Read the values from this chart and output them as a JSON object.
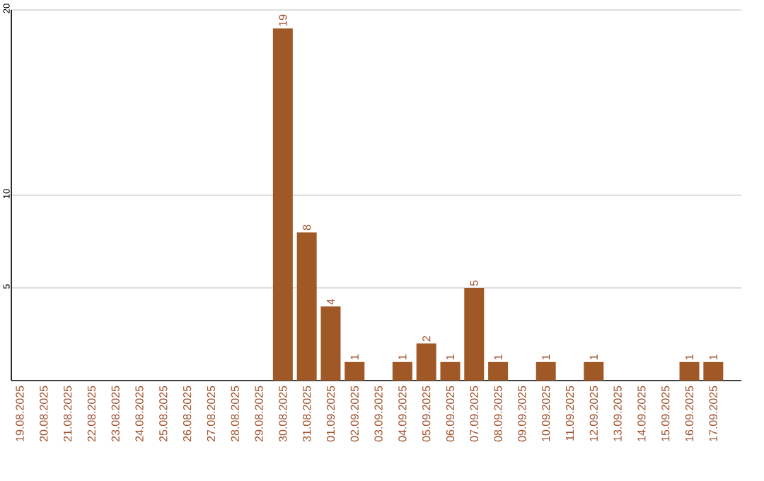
{
  "chart_data": {
    "type": "bar",
    "categories": [
      "19.08.2025",
      "20.08.2025",
      "21.08.2025",
      "22.08.2025",
      "23.08.2025",
      "24.08.2025",
      "25.08.2025",
      "26.08.2025",
      "27.08.2025",
      "28.08.2025",
      "29.08.2025",
      "30.08.2025",
      "31.08.2025",
      "01.09.2025",
      "02.09.2025",
      "03.09.2025",
      "04.09.2025",
      "05.09.2025",
      "06.09.2025",
      "07.09.2025",
      "08.09.2025",
      "09.09.2025",
      "10.09.2025",
      "11.09.2025",
      "12.09.2025",
      "13.09.2025",
      "14.09.2025",
      "15.09.2025",
      "16.09.2025",
      "17.09.2025"
    ],
    "values": [
      0,
      0,
      0,
      0,
      0,
      0,
      0,
      0,
      0,
      0,
      0,
      19,
      8,
      4,
      1,
      0,
      1,
      2,
      1,
      5,
      1,
      0,
      1,
      0,
      1,
      0,
      0,
      0,
      1,
      1
    ],
    "value_labels": [
      null,
      null,
      null,
      null,
      null,
      null,
      null,
      null,
      null,
      null,
      null,
      "19",
      "8",
      "4",
      "1",
      null,
      "1",
      "2",
      "1",
      "5",
      "1",
      null,
      "1",
      null,
      "1",
      null,
      null,
      null,
      "1",
      "1"
    ],
    "color": "#a15827",
    "ylim": [
      0,
      20
    ],
    "yticks": [
      5,
      10,
      20
    ],
    "grid": "y"
  }
}
